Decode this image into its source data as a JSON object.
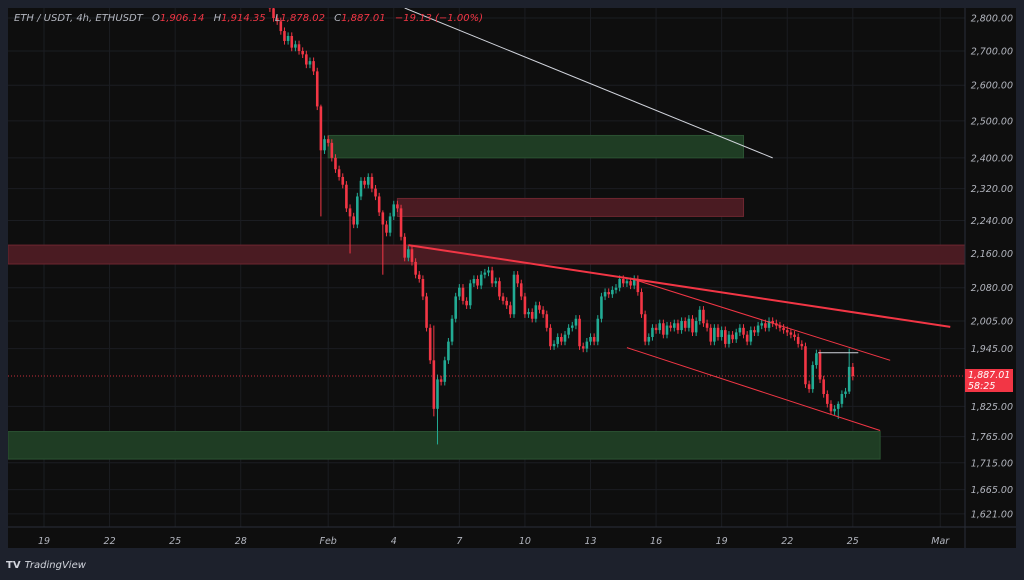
{
  "legend": {
    "symbol": "ETH / USDT, 4h, ETHUSDT",
    "open_label": "O",
    "open": "1,906.14",
    "high_label": "H",
    "high": "1,914.35",
    "low_label": "L",
    "low": "1,878.02",
    "close_label": "C",
    "close": "1,887.01",
    "change": "−19.13 (−1.00%)"
  },
  "price_label": {
    "price": "1,887.01",
    "countdown": "58:25"
  },
  "brand": {
    "logo": "TV",
    "name": "TradingView"
  },
  "colors": {
    "up": "#22ab94",
    "down": "#f23645",
    "background": "#0e0e0e",
    "frame": "#1d212c",
    "trendline": "#f23645",
    "white_line": "#d1d4dc"
  },
  "chart_data": {
    "type": "candlestick",
    "title": "ETH / USDT, 4h, ETHUSDT",
    "interval": "4h",
    "y_scale": "log",
    "ylim": [
      1598,
      2831
    ],
    "grid": true,
    "y_ticks": [
      "2,800.00",
      "2,700.00",
      "2,600.00",
      "2,500.00",
      "2,400.00",
      "2,320.00",
      "2,240.00",
      "2,160.00",
      "2,080.00",
      "2,005.00",
      "1,945.00",
      "1,825.00",
      "1,765.00",
      "1,715.00",
      "1,665.00",
      "1,621.00"
    ],
    "x_ticks": [
      {
        "label": "19",
        "date": "01-19T00:00"
      },
      {
        "label": "22",
        "date": "01-22T00:00"
      },
      {
        "label": "25",
        "date": "01-25T00:00"
      },
      {
        "label": "28",
        "date": "01-28T00:00"
      },
      {
        "label": "Feb",
        "date": "02-01T00:00"
      },
      {
        "label": "4",
        "date": "02-04T00:00"
      },
      {
        "label": "7",
        "date": "02-07T00:00"
      },
      {
        "label": "10",
        "date": "02-10T00:00"
      },
      {
        "label": "13",
        "date": "02-13T00:00"
      },
      {
        "label": "16",
        "date": "02-16T00:00"
      },
      {
        "label": "19",
        "date": "02-19T00:00"
      },
      {
        "label": "22",
        "date": "02-22T00:00"
      },
      {
        "label": "25",
        "date": "02-25T00:00"
      },
      {
        "label": "Mar",
        "date": "03-01T00:00"
      }
    ],
    "candles_start": "01-29T08:00",
    "first_open": 2850,
    "closes": [
      2830,
      2800,
      2790,
      2760,
      2730,
      2745,
      2710,
      2720,
      2700,
      2690,
      2660,
      2670,
      2640,
      2540,
      2420,
      2450,
      2440,
      2400,
      2370,
      2350,
      2330,
      2270,
      2250,
      2230,
      2300,
      2340,
      2330,
      2350,
      2320,
      2300,
      2260,
      2230,
      2210,
      2250,
      2280,
      2270,
      2200,
      2150,
      2170,
      2140,
      2110,
      2100,
      2060,
      1990,
      1920,
      1820,
      1880,
      1875,
      1920,
      1960,
      2010,
      2060,
      2080,
      2050,
      2040,
      2090,
      2100,
      2085,
      2110,
      2115,
      2120,
      2090,
      2095,
      2060,
      2050,
      2040,
      2020,
      2110,
      2090,
      2060,
      2020,
      2025,
      2010,
      2040,
      2030,
      2020,
      1990,
      1950,
      1955,
      1970,
      1960,
      1975,
      1990,
      1995,
      2010,
      1950,
      1945,
      1960,
      1970,
      1960,
      2010,
      2060,
      2070,
      2065,
      2075,
      2080,
      2100,
      2090,
      2095,
      2085,
      2100,
      2070,
      2020,
      1960,
      1970,
      1990,
      1985,
      2000,
      1975,
      1995,
      1990,
      2000,
      1985,
      2005,
      1990,
      2010,
      1980,
      2005,
      2030,
      2000,
      1990,
      1960,
      1990,
      1970,
      1985,
      1955,
      1975,
      1965,
      1980,
      1990,
      1975,
      1960,
      1985,
      1980,
      1995,
      2000,
      1990,
      2005,
      2000,
      1995,
      1990,
      1985,
      1980,
      1975,
      1970,
      1955,
      1950,
      1870,
      1860,
      1910,
      1935,
      1880,
      1850,
      1830,
      1815,
      1820,
      1830,
      1850,
      1855,
      1906.14,
      1887.01
    ],
    "wick_overrides": {
      "14": [
        2545,
        2250
      ],
      "22": [
        2280,
        2160
      ],
      "31": [
        2265,
        2110
      ],
      "45": [
        1995,
        1805
      ],
      "46": [
        1890,
        1750
      ],
      "156": [
        1835,
        1800
      ],
      "159": [
        1945,
        1850
      ],
      "160": [
        1914.35,
        1878.02
      ]
    },
    "current_price": 1887.01,
    "zones": [
      {
        "kind": "demand",
        "from": "02-01T00:00",
        "to": "02-20T00:00",
        "low": 2400,
        "high": 2460,
        "color": "#1f3d24"
      },
      {
        "kind": "supply",
        "from": "02-04T04:00",
        "to": "02-20T00:00",
        "low": 2250,
        "high": 2295,
        "color": "#4a1b22"
      },
      {
        "kind": "supply",
        "from": "01-17T08:00",
        "to": "03-02T04:00",
        "low": 2135,
        "high": 2180,
        "color": "#4a1b22"
      },
      {
        "kind": "demand",
        "from": "01-17T08:00",
        "to": "02-26T06:00",
        "low": 1722,
        "high": 1775,
        "color": "#1f3d24"
      }
    ],
    "lines": [
      {
        "kind": "trendline",
        "from": [
          "02-04T12:00",
          2831
        ],
        "to": [
          "02-21T08:00",
          2400
        ],
        "color": "#d1d4dc",
        "width": 1
      },
      {
        "kind": "trendline",
        "from": [
          "02-04T16:00",
          2180
        ],
        "to": [
          "03-01T11:00",
          1992
        ],
        "color": "#f23645",
        "width": 2
      },
      {
        "kind": "channel-upper",
        "from": [
          "02-14T22:00",
          2100
        ],
        "to": [
          "02-26T17:00",
          1920
        ],
        "color": "#f23645",
        "width": 1
      },
      {
        "kind": "channel-lower",
        "from": [
          "02-14T16:00",
          1947
        ],
        "to": [
          "02-26T06:00",
          1777
        ],
        "color": "#f23645",
        "width": 1
      },
      {
        "kind": "level",
        "from": [
          "02-23T10:00",
          1936
        ],
        "to": [
          "02-25T06:00",
          1936
        ],
        "color": "#d1d4dc",
        "width": 1
      }
    ]
  }
}
